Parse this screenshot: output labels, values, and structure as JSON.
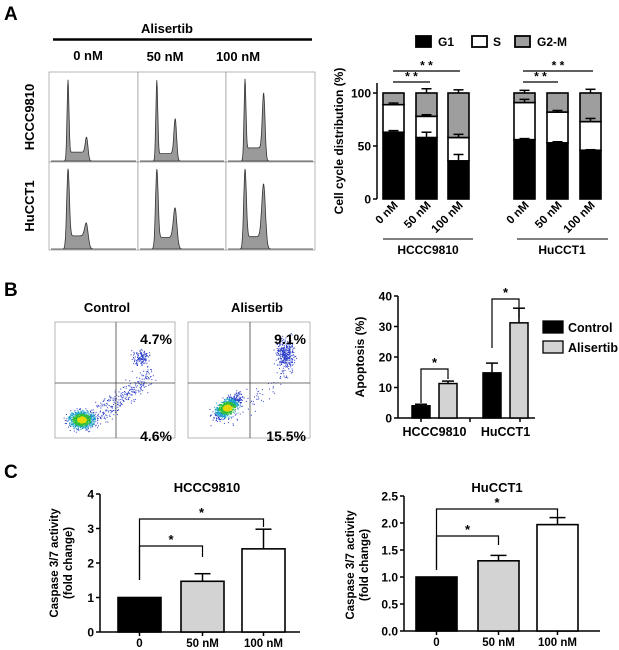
{
  "panels": {
    "a": "A",
    "b": "B",
    "c": "C"
  },
  "panel_a": {
    "treatment": "Alisertib",
    "concentrations": [
      "0 nM",
      "50 nM",
      "100 nM"
    ],
    "cell_lines": [
      "HCCC9810",
      "HuCCT1"
    ]
  },
  "panel_b": {
    "conditions": [
      "Control",
      "Alisertib"
    ],
    "quadrants": [
      {
        "upper_right": "4.7%",
        "lower_right": "4.6%"
      },
      {
        "upper_right": "9.1%",
        "lower_right": "15.5%"
      }
    ]
  },
  "chart_data": [
    {
      "type": "bar",
      "stacked": true,
      "title": "",
      "ylabel": "Cell cycle distribution (%)",
      "ylim": [
        0,
        100
      ],
      "yticks": [
        0,
        50,
        100
      ],
      "legend": "top",
      "groups": [
        {
          "name": "HCCC9810",
          "categories": [
            "0 nM",
            "50 nM",
            "100 nM"
          ]
        },
        {
          "name": "HuCCT1",
          "categories": [
            "0 nM",
            "50 nM",
            "100 nM"
          ]
        }
      ],
      "series": [
        {
          "name": "G1",
          "color": "#000000",
          "values": [
            63,
            58,
            36,
            56,
            53,
            46
          ],
          "errors": [
            1.5,
            5,
            6,
            1,
            1,
            0.5
          ]
        },
        {
          "name": "S",
          "color": "#ffffff",
          "values": [
            26,
            20,
            22,
            35,
            29,
            27
          ],
          "errors": [
            1.5,
            1.5,
            3,
            3,
            1.5,
            3
          ]
        },
        {
          "name": "G2-M",
          "color": "#9e9e9e",
          "values": [
            11,
            22,
            42,
            9,
            18,
            27
          ],
          "errors": [
            0,
            4,
            3,
            2.5,
            0,
            3.5
          ]
        }
      ],
      "significance": [
        {
          "group": "HCCC9810",
          "from": "0 nM",
          "to": "100 nM",
          "label": "* *"
        },
        {
          "group": "HCCC9810",
          "from": "0 nM",
          "to": "50 nM",
          "label": "* *"
        },
        {
          "group": "HuCCT1",
          "from": "0 nM",
          "to": "100 nM",
          "label": "* *"
        },
        {
          "group": "HuCCT1",
          "from": "0 nM",
          "to": "50 nM",
          "label": "* *"
        }
      ]
    },
    {
      "type": "bar",
      "title": "",
      "ylabel": "Apoptosis (%)",
      "ylim": [
        0,
        40
      ],
      "yticks": [
        0,
        10,
        20,
        30,
        40
      ],
      "legend": "right",
      "categories": [
        "HCCC9810",
        "HuCCT1"
      ],
      "series": [
        {
          "name": "Control",
          "color": "#000000",
          "values": [
            4.0,
            14.8
          ],
          "errors": [
            0.5,
            3.2
          ]
        },
        {
          "name": "Alisertib",
          "color": "#d3d3d3",
          "values": [
            11.3,
            31.2
          ],
          "errors": [
            0.8,
            4.8
          ]
        }
      ],
      "significance": [
        {
          "category": "HCCC9810",
          "label": "*"
        },
        {
          "category": "HuCCT1",
          "label": "*"
        }
      ]
    },
    {
      "type": "bar",
      "title": "HCCC9810",
      "ylabel": [
        "Caspase 3/7 activity",
        "(fold change)"
      ],
      "ylim": [
        0,
        4
      ],
      "yticks": [
        0,
        1,
        2,
        3,
        4
      ],
      "ytick_labels": [
        "0",
        "1",
        "2",
        "3",
        "4"
      ],
      "categories": [
        "0",
        "50 nM",
        "100 nM"
      ],
      "values": [
        1.0,
        1.47,
        2.41
      ],
      "errors": [
        0,
        0.22,
        0.57
      ],
      "colors": [
        "#000000",
        "#d3d3d3",
        "#ffffff"
      ],
      "significance": [
        {
          "from": "0",
          "to": "100 nM",
          "label": "*"
        },
        {
          "from": "0",
          "to": "50 nM",
          "label": "*"
        }
      ]
    },
    {
      "type": "bar",
      "title": "HuCCT1",
      "ylabel": [
        "Caspase 3/7 activity",
        "(fold change)"
      ],
      "ylim": [
        0,
        2.5
      ],
      "yticks": [
        0,
        0.5,
        1.0,
        1.5,
        2.0,
        2.5
      ],
      "ytick_labels": [
        "0.0",
        "0.5",
        "1.0",
        "1.5",
        "2.0",
        "2.5"
      ],
      "categories": [
        "0",
        "50 nM",
        "100 nM"
      ],
      "values": [
        1.0,
        1.3,
        1.97
      ],
      "errors": [
        0,
        0.1,
        0.13
      ],
      "colors": [
        "#000000",
        "#d3d3d3",
        "#ffffff"
      ],
      "significance": [
        {
          "from": "0",
          "to": "100 nM",
          "label": "*"
        },
        {
          "from": "0",
          "to": "50 nM",
          "label": "*"
        }
      ]
    }
  ]
}
